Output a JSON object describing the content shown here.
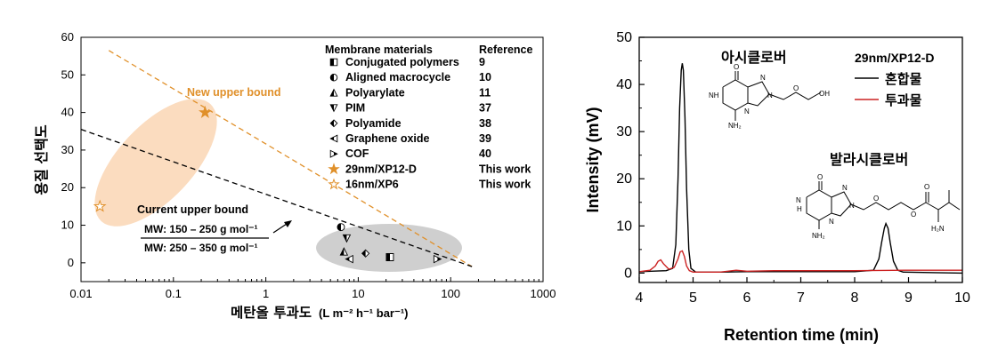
{
  "chart_data": [
    {
      "type": "scatter",
      "xlabel": "메탄올 투과도",
      "xlabel_units": "(L m⁻² h⁻¹ bar⁻¹)",
      "ylabel": "용질 선택도",
      "xscale": "log",
      "xlim": [
        0.01,
        1000
      ],
      "ylim": [
        -5,
        60
      ],
      "xticks": [
        "0.01",
        "0.1",
        "1",
        "10",
        "100",
        "1000"
      ],
      "yticks": [
        "0",
        "10",
        "20",
        "30",
        "40",
        "50",
        "60"
      ],
      "legend": {
        "header_materials": "Membrane materials",
        "header_reference": "Reference",
        "entries": [
          {
            "label": "Conjugated polymers",
            "ref": "9",
            "marker": "square-half"
          },
          {
            "label": "Aligned macrocycle",
            "ref": "10",
            "marker": "circle-half"
          },
          {
            "label": "Polyarylate",
            "ref": "11",
            "marker": "triangle-up-half"
          },
          {
            "label": "PIM",
            "ref": "37",
            "marker": "triangle-down-half"
          },
          {
            "label": "Polyamide",
            "ref": "38",
            "marker": "diamond-half"
          },
          {
            "label": "Graphene oxide",
            "ref": "39",
            "marker": "triangle-left-half"
          },
          {
            "label": "COF",
            "ref": "40",
            "marker": "triangle-right-half"
          },
          {
            "label": "29nm/XP12-D",
            "ref": "This work",
            "marker": "star-filled"
          },
          {
            "label": "16nm/XP6",
            "ref": "This work",
            "marker": "star-open"
          }
        ]
      },
      "points": [
        {
          "series": "Aligned macrocycle",
          "x": 6.5,
          "y": 9.5
        },
        {
          "series": "PIM",
          "x": 7.5,
          "y": 6.5
        },
        {
          "series": "Polyarylate",
          "x": 7.0,
          "y": 3.0
        },
        {
          "series": "Graphene oxide",
          "x": 8.0,
          "y": 1.0
        },
        {
          "series": "Polyamide",
          "x": 12.0,
          "y": 2.5
        },
        {
          "series": "Conjugated polymers",
          "x": 22.0,
          "y": 1.5
        },
        {
          "series": "COF",
          "x": 72.0,
          "y": 1.0
        },
        {
          "series": "29nm/XP12-D",
          "x": 0.22,
          "y": 40
        },
        {
          "series": "16nm/XP6",
          "x": 0.016,
          "y": 15
        }
      ],
      "lines": [
        {
          "name": "New upper bound",
          "color": "#e0902a",
          "from": [
            0.02,
            56.5
          ],
          "to": [
            170,
            -1
          ]
        },
        {
          "name": "Current upper bound",
          "color": "#000000",
          "from": [
            0.01,
            35.5
          ],
          "to": [
            170,
            -1
          ]
        }
      ],
      "annotations": {
        "new_upper_bound": "New upper bound",
        "current_upper_bound": "Current upper bound",
        "mw_top": "MW: 150 – 250 g mol⁻¹",
        "mw_bottom": "MW: 250 – 350 g mol⁻¹"
      },
      "colors": {
        "orange": "#e0902a",
        "ellipse_orange": "#fbdcbf",
        "ellipse_gray": "#cfcfcf"
      }
    },
    {
      "type": "line",
      "xlabel": "Retention time (min)",
      "ylabel": "Intensity (mV)",
      "xlim": [
        4,
        10
      ],
      "ylim": [
        -2,
        50
      ],
      "xticks": [
        "4",
        "5",
        "6",
        "7",
        "8",
        "9",
        "10"
      ],
      "yticks": [
        "0",
        "10",
        "20",
        "30",
        "40",
        "50"
      ],
      "legend": {
        "title": "29nm/XP12-D",
        "entries": [
          {
            "label": "혼합물",
            "color": "#000000"
          },
          {
            "label": "투과물",
            "color": "#cc2222"
          }
        ]
      },
      "series": [
        {
          "name": "혼합물",
          "color": "#000000",
          "x": [
            4.0,
            4.5,
            4.62,
            4.68,
            4.72,
            4.75,
            4.78,
            4.8,
            4.82,
            4.85,
            4.88,
            4.92,
            4.96,
            5.05,
            5.5,
            6.0,
            7.0,
            8.0,
            8.35,
            8.45,
            8.5,
            8.55,
            8.58,
            8.62,
            8.66,
            8.72,
            8.8,
            8.9,
            9.5,
            10.0
          ],
          "y": [
            0.3,
            0.5,
            1.0,
            6.0,
            20.0,
            35.0,
            43.0,
            44.5,
            43.0,
            33.0,
            18.0,
            5.0,
            1.0,
            0.2,
            0.2,
            0.3,
            0.3,
            0.3,
            0.6,
            3.0,
            6.5,
            9.5,
            10.5,
            9.5,
            6.5,
            2.5,
            0.6,
            0.2,
            0.1,
            0.0
          ]
        },
        {
          "name": "투과물",
          "color": "#cc2222",
          "x": [
            4.0,
            4.2,
            4.3,
            4.35,
            4.4,
            4.45,
            4.55,
            4.65,
            4.72,
            4.76,
            4.8,
            4.84,
            4.88,
            4.93,
            5.0,
            5.5,
            5.8,
            6.0,
            6.5,
            7.0,
            8.0,
            9.0,
            10.0
          ],
          "y": [
            0.3,
            0.6,
            1.5,
            2.5,
            2.8,
            2.0,
            0.8,
            1.2,
            3.0,
            4.5,
            4.7,
            3.5,
            1.5,
            0.5,
            0.2,
            0.2,
            0.6,
            0.4,
            0.5,
            0.5,
            0.5,
            0.6,
            0.6
          ]
        }
      ],
      "annotations": {
        "peak1_label": "아시클로버",
        "peak2_label": "발라시클로버"
      },
      "molecule_labels": {
        "O": "O",
        "N": "N",
        "NH": "NH",
        "H": "H",
        "NH2": "NH₂",
        "H2N": "H₂N",
        "OH": "OH"
      }
    }
  ]
}
